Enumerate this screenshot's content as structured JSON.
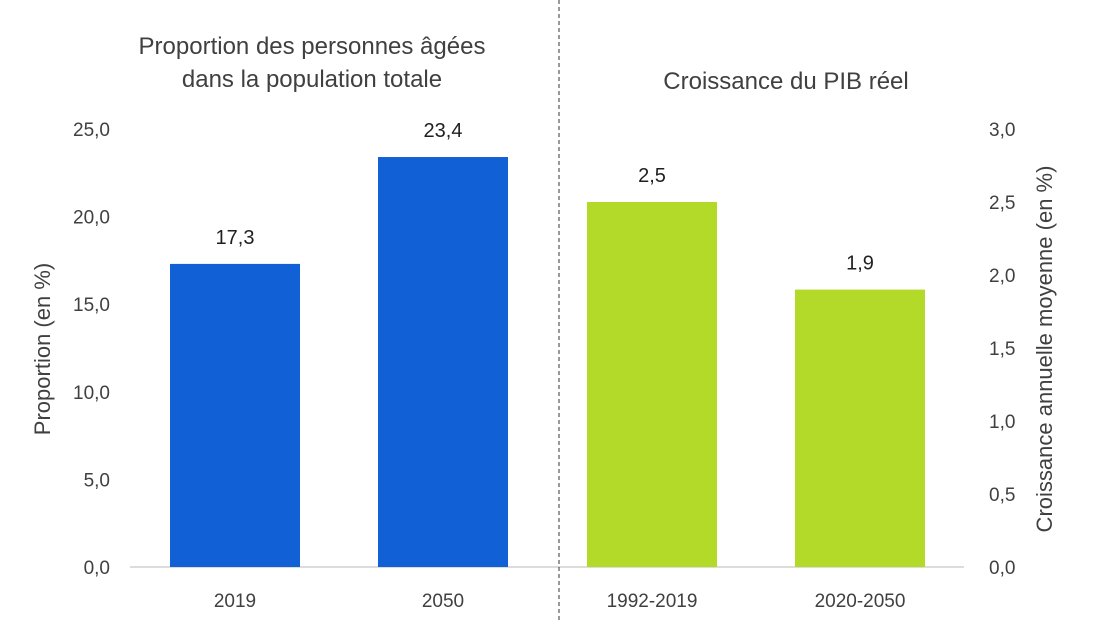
{
  "chart_data": [
    {
      "type": "bar",
      "title_lines": [
        "Proportion des personnes âgées",
        "dans la population totale"
      ],
      "categories": [
        "2019",
        "2050"
      ],
      "values": [
        17.3,
        23.4
      ],
      "value_labels": [
        "17,3",
        "23,4"
      ],
      "ylabel": "Proportion (en %)",
      "ylim": [
        0,
        25
      ],
      "yticks": [
        "0,0",
        "5,0",
        "10,0",
        "15,0",
        "20,0",
        "25,0"
      ],
      "axis_side": "left",
      "color": "#1160D6",
      "grid": false
    },
    {
      "type": "bar",
      "title_lines": [
        "Croissance du PIB réel"
      ],
      "categories": [
        "1992-2019",
        "2020-2050"
      ],
      "values": [
        2.5,
        1.9
      ],
      "value_labels": [
        "2,5",
        "1,9"
      ],
      "ylabel": "Croissance annuelle moyenne (en %)",
      "ylim": [
        0,
        3
      ],
      "yticks": [
        "0,0",
        "0,5",
        "1,0",
        "1,5",
        "2,0",
        "2,5",
        "3,0"
      ],
      "axis_side": "right",
      "color": "#B3D929",
      "grid": false
    }
  ]
}
